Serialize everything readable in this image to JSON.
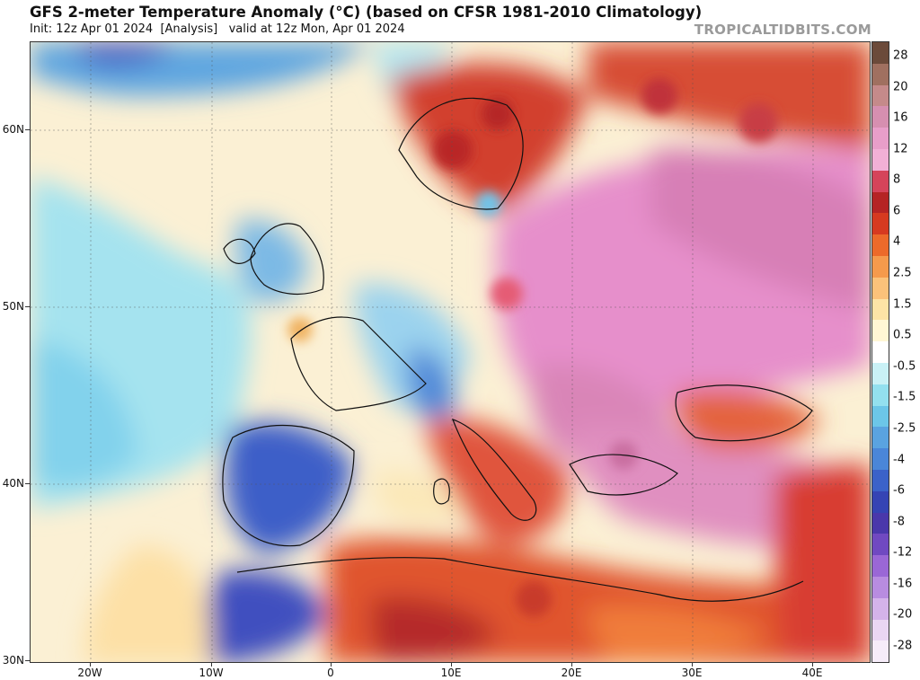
{
  "header": {
    "title": "GFS 2-meter Temperature Anomaly (°C) (based on CFSR 1981-2010 Climatology)",
    "init_label": "Init: 12z Apr 01 2024",
    "analysis_label": "[Analysis]",
    "valid_label": "valid at 12z Mon, Apr 01 2024",
    "brand": "TROPICALTIDBITS.COM"
  },
  "map": {
    "region": "Europe / North Africa",
    "latitude_labels": [
      "60N",
      "50N",
      "40N",
      "30N"
    ],
    "longitude_labels": [
      "20W",
      "10W",
      "0",
      "10E",
      "20E",
      "30E",
      "40E"
    ],
    "colors": {
      "ocean_neutral": "#fbf3d9",
      "cool_anomaly": "#5aa3e0",
      "strong_cool": "#3b62c9",
      "warm_anomaly": "#e0593a",
      "strong_warm": "#c0312d",
      "very_warm_pink": "#e37fc2"
    }
  },
  "colorbar": {
    "labels": [
      "28",
      "20",
      "16",
      "12",
      "8",
      "6",
      "4",
      "2.5",
      "1.5",
      "0.5",
      "-0.5",
      "-1.5",
      "-2.5",
      "-4",
      "-6",
      "-8",
      "-12",
      "-16",
      "-20",
      "-28"
    ],
    "colors": [
      "#6b4a3a",
      "#a07060",
      "#c58a8a",
      "#d68fb0",
      "#e89ec9",
      "#f2b0d6",
      "#d5445a",
      "#b52424",
      "#d63a20",
      "#ec6a2a",
      "#f59a4c",
      "#fbc27a",
      "#fde4a6",
      "#fff7d4",
      "#ffffff",
      "#c9f1f6",
      "#93e0ef",
      "#6cc6e8",
      "#5aa3e0",
      "#4a86d8",
      "#3b62c9",
      "#3544b4",
      "#4a38ab",
      "#7049c1",
      "#9a67d6",
      "#b88ce0",
      "#d4b3ea",
      "#ead6f3",
      "#f6ecf9"
    ]
  }
}
